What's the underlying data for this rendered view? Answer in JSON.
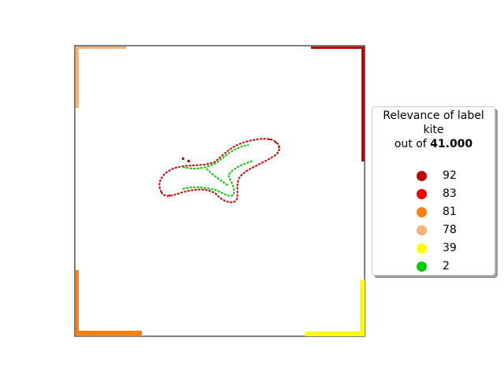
{
  "chart_data": {
    "type": "scatter",
    "description_kind": "segmentation relevance map",
    "legend_title": {
      "line1": "Relevance of label",
      "line2": "kite",
      "line3_prefix": "out of ",
      "line3_value": "41.000"
    },
    "legend": [
      {
        "label": "92",
        "color": "#c00000"
      },
      {
        "label": "83",
        "color": "#ee0000"
      },
      {
        "label": "81",
        "color": "#ff7f0e"
      },
      {
        "label": "78",
        "color": "#ffb070"
      },
      {
        "label": "39",
        "color": "#ffff00"
      },
      {
        "label": "2",
        "color": "#00cc00"
      }
    ],
    "axes_visible": false,
    "grid": false,
    "legend_placement": "right"
  }
}
